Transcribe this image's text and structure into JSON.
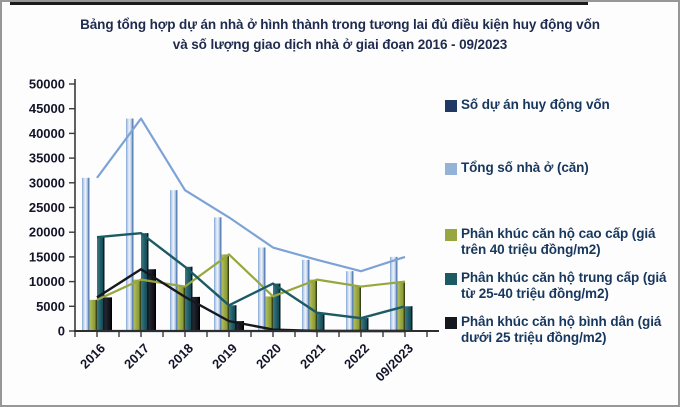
{
  "title": "Bảng tổng hợp dự án nhà ở hình thành trong tương lai đủ điều kiện huy động vốn\nvà số lượng giao dịch nhà ở giai đoạn 2016 - 09/2023",
  "chart_data": {
    "type": "bar",
    "subtype": "grouped bars with matching line overlay per series",
    "title": "Bảng tổng hợp dự án nhà ở hình thành trong tương lai đủ điều kiện huy động vốn và số lượng giao dịch nhà ở giai đoạn 2016 - 09/2023",
    "categories": [
      "2016",
      "2017",
      "2018",
      "2019",
      "2020",
      "2021",
      "2022",
      "09/2023"
    ],
    "series": [
      {
        "name": "Số dự án huy động vốn",
        "color": "#1F3864",
        "values": [
          0,
          0,
          0,
          0,
          0,
          0,
          0,
          0
        ],
        "note": "series present in legend; bar heights too small to be visible at this axis scale"
      },
      {
        "name": "Tổng số nhà ở (căn)",
        "color": "#95B3D7",
        "line_color": "#7DA3D6",
        "fill": [
          "#7fa5d3",
          "#cdd9ef",
          "#eef2fa",
          "#9cbbe2",
          "#6e95c5"
        ],
        "edge": "#5d83b4",
        "values": [
          31000,
          43000,
          28500,
          23000,
          16900,
          14400,
          12100,
          15000
        ]
      },
      {
        "name": "Phân khúc căn hộ cao cấp (giá trên 40 triệu đồng/m2)",
        "color": "#97A63E",
        "fill": [
          "#b3bf66",
          "#96a53e",
          "#7e8e30"
        ],
        "edge": "#39431a",
        "values": [
          6300,
          10400,
          9000,
          15500,
          7000,
          10400,
          9000,
          10000
        ]
      },
      {
        "name": "Phân khúc căn hộ trung cấp (giá từ 25-40 triệu đồng/m2)",
        "color": "#1C5A64",
        "fill": [
          "#3d7a85",
          "#1e5b66",
          "#123f48"
        ],
        "edge": "#041b20",
        "values": [
          19000,
          19800,
          13000,
          5200,
          9600,
          3700,
          2600,
          5000
        ]
      },
      {
        "name": "Phân khúc căn hộ bình dân (giá dưới 25 triệu đồng/m2)",
        "color": "#17171F",
        "fill": [
          "#2a2a36",
          "#17171f",
          "#0a0a10"
        ],
        "edge": "#000000",
        "values": [
          6800,
          12500,
          6900,
          2000,
          300,
          0,
          0,
          0
        ]
      }
    ],
    "y_axis": {
      "min": 0,
      "max": 50000,
      "step": 5000,
      "tick_labels": [
        "0",
        "5000",
        "10000",
        "15000",
        "20000",
        "25000",
        "30000",
        "35000",
        "40000",
        "45000",
        "50000"
      ]
    },
    "x_axis": {
      "label_rotation_deg": -45
    },
    "grid": false,
    "legend_position": "right"
  }
}
